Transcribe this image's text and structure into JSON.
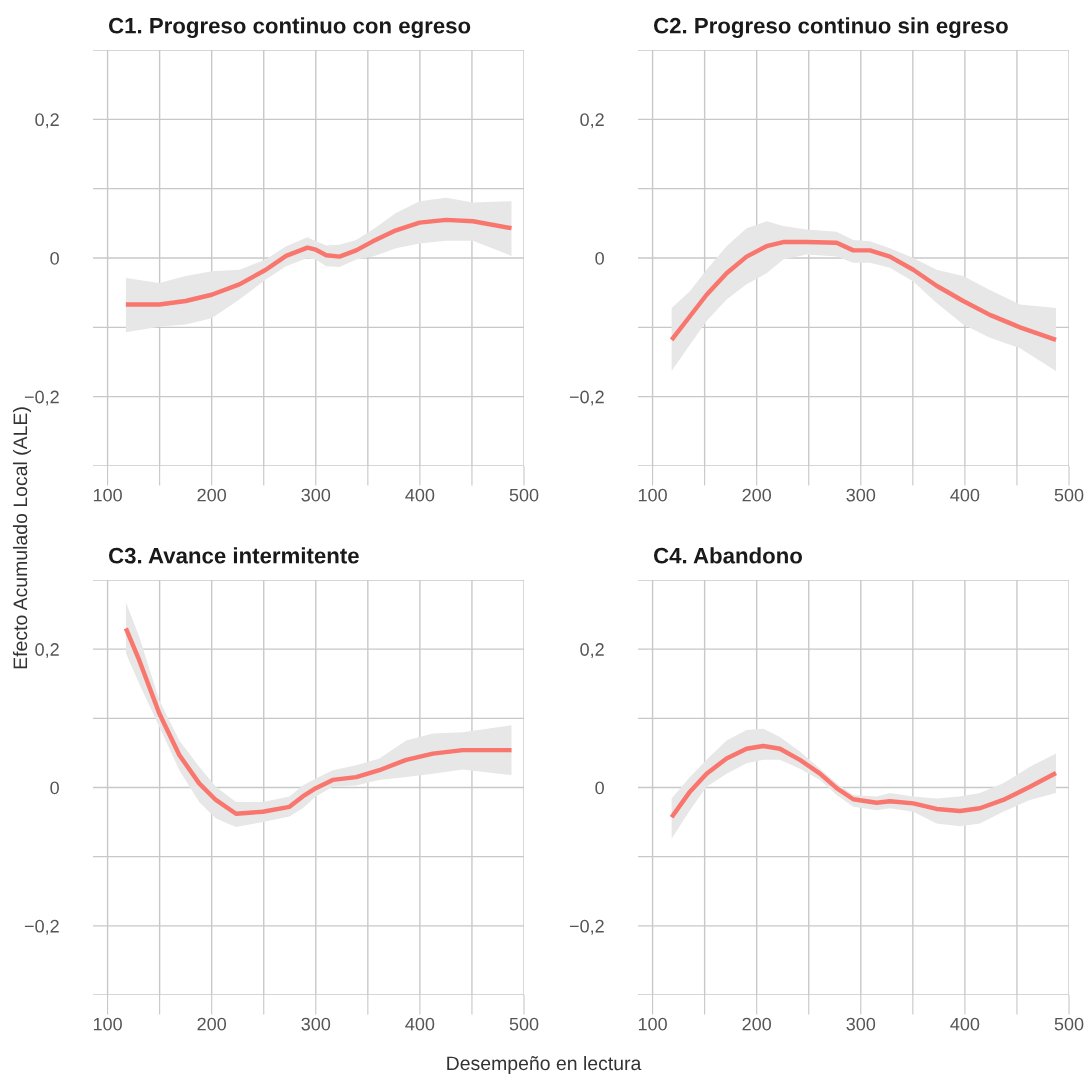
{
  "chart_data": [
    {
      "type": "line",
      "title": "C1. Progreso continuo con egreso",
      "ylabel": "Efecto Acumulado Local (ALE)",
      "xlim": [
        86,
        500
      ],
      "ylim": [
        -0.3,
        0.3
      ],
      "xticks": [
        100,
        {
          "value": 150,
          "label": null
        },
        200,
        {
          "value": 250,
          "label": null
        },
        300,
        {
          "value": 350,
          "label": null
        },
        400,
        {
          "value": 450,
          "label": null
        },
        500
      ],
      "yticks": [
        {
          "value": -0.3,
          "label": null
        },
        {
          "value": -0.2,
          "label": "−0,2"
        },
        {
          "value": -0.1,
          "label": null
        },
        0,
        {
          "value": 0.1,
          "label": null
        },
        {
          "value": 0.2,
          "label": "0,2"
        },
        {
          "value": 0.3,
          "label": null
        }
      ],
      "grid": true,
      "line_style": "solid",
      "marker": "none",
      "series": [
        {
          "color": "#f8766d",
          "x": [
            117.6,
            149.7,
            175,
            200,
            226.6,
            252,
            271.5,
            292,
            300,
            310,
            322.8,
            338.8,
            354.8,
            377,
            399.7,
            425,
            451,
            488
          ],
          "values": [
            -0.067,
            -0.067,
            -0.062,
            -0.053,
            -0.038,
            -0.017,
            0.003,
            0.015,
            0.012,
            0.004,
            0.002,
            0.011,
            0.024,
            0.04,
            0.051,
            0.055,
            0.053,
            0.043
          ],
          "upper": [
            -0.029,
            -0.036,
            -0.026,
            -0.019,
            -0.017,
            -0.002,
            0.017,
            0.03,
            0.024,
            0.018,
            0.019,
            0.026,
            0.041,
            0.065,
            0.082,
            0.087,
            0.08,
            0.082
          ],
          "lower": [
            -0.107,
            -0.099,
            -0.096,
            -0.087,
            -0.06,
            -0.031,
            -0.012,
            0,
            -0.002,
            -0.012,
            -0.013,
            -0.002,
            0.002,
            0.014,
            0.021,
            0.025,
            0.025,
            0.003
          ]
        }
      ]
    },
    {
      "type": "line",
      "title": "C2. Progreso continuo sin egreso",
      "xlim": [
        86,
        500
      ],
      "ylim": [
        -0.3,
        0.3
      ],
      "xticks": [
        100,
        {
          "value": 150,
          "label": null
        },
        200,
        {
          "value": 250,
          "label": null
        },
        300,
        {
          "value": 350,
          "label": null
        },
        400,
        {
          "value": 450,
          "label": null
        },
        500
      ],
      "yticks": [
        {
          "value": -0.3,
          "label": null
        },
        {
          "value": -0.2,
          "label": "−0,2"
        },
        {
          "value": -0.1,
          "label": null
        },
        0,
        {
          "value": 0.1,
          "label": null
        },
        {
          "value": 0.2,
          "label": "0,2"
        },
        {
          "value": 0.3,
          "label": null
        }
      ],
      "grid": true,
      "line_style": "solid",
      "marker": "none",
      "series": [
        {
          "color": "#f8766d",
          "x": [
            118.3,
            135.9,
            151.9,
            171.1,
            190.3,
            209.5,
            225.5,
            248,
            276.8,
            292.8,
            308.8,
            328,
            350.4,
            372.8,
            398.4,
            424,
            452.9,
            487.5
          ],
          "values": [
            -0.118,
            -0.084,
            -0.053,
            -0.022,
            0.002,
            0.017,
            0.023,
            0.023,
            0.022,
            0.011,
            0.011,
            0.002,
            -0.017,
            -0.04,
            -0.062,
            -0.082,
            -0.1,
            -0.118
          ],
          "upper": [
            -0.072,
            -0.048,
            -0.017,
            0.017,
            0.043,
            0.053,
            0.046,
            0.041,
            0.038,
            0.026,
            0.024,
            0.014,
            0,
            -0.017,
            -0.026,
            -0.046,
            -0.067,
            -0.072
          ],
          "lower": [
            -0.163,
            -0.125,
            -0.091,
            -0.06,
            -0.038,
            -0.022,
            -0.002,
            0.005,
            0.002,
            -0.007,
            -0.007,
            -0.014,
            -0.034,
            -0.065,
            -0.096,
            -0.115,
            -0.13,
            -0.163
          ]
        }
      ]
    },
    {
      "type": "line",
      "title": "C3. Avance intermitente",
      "xlabel": "Desempeño en lectura",
      "xlim": [
        86,
        500
      ],
      "ylim": [
        -0.3,
        0.3
      ],
      "xticks": [
        100,
        {
          "value": 150,
          "label": null
        },
        200,
        {
          "value": 250,
          "label": null
        },
        300,
        {
          "value": 350,
          "label": null
        },
        400,
        {
          "value": 450,
          "label": null
        },
        500
      ],
      "yticks": [
        {
          "value": -0.3,
          "label": null
        },
        {
          "value": -0.2,
          "label": "−0,2"
        },
        {
          "value": -0.1,
          "label": null
        },
        0,
        {
          "value": 0.1,
          "label": null
        },
        {
          "value": 0.2,
          "label": "0,2"
        },
        {
          "value": 0.3,
          "label": null
        }
      ],
      "grid": true,
      "line_style": "solid",
      "marker": "none",
      "series": [
        {
          "color": "#f8766d",
          "x": [
            117.6,
            130.4,
            149.7,
            168.9,
            188,
            204,
            223.4,
            249,
            274.7,
            287.5,
            300,
            316.3,
            338.8,
            361,
            386.9,
            412.5,
            441,
            488
          ],
          "values": [
            0.23,
            0.184,
            0.107,
            0.047,
            0.006,
            -0.018,
            -0.038,
            -0.035,
            -0.028,
            -0.013,
            -0.001,
            0.011,
            0.015,
            0.025,
            0.04,
            0.049,
            0.054,
            0.054
          ],
          "upper": [
            0.268,
            0.218,
            0.126,
            0.068,
            0.03,
            0.001,
            -0.021,
            -0.021,
            -0.013,
            0.003,
            0.013,
            0.025,
            0.032,
            0.042,
            0.068,
            0.078,
            0.08,
            0.09
          ],
          "lower": [
            0.194,
            0.15,
            0.088,
            0.025,
            -0.021,
            -0.045,
            -0.057,
            -0.05,
            -0.042,
            -0.03,
            -0.013,
            0.001,
            0.003,
            0.011,
            0.015,
            0.02,
            0.026,
            0.018
          ]
        }
      ]
    },
    {
      "type": "line",
      "title": "C4. Abandono",
      "xlim": [
        86,
        500
      ],
      "ylim": [
        -0.3,
        0.3
      ],
      "xticks": [
        100,
        {
          "value": 150,
          "label": null
        },
        200,
        {
          "value": 250,
          "label": null
        },
        300,
        {
          "value": 350,
          "label": null
        },
        400,
        {
          "value": 450,
          "label": null
        },
        500
      ],
      "yticks": [
        {
          "value": -0.3,
          "label": null
        },
        {
          "value": -0.2,
          "label": "−0,2"
        },
        {
          "value": -0.1,
          "label": null
        },
        0,
        {
          "value": 0.1,
          "label": null
        },
        {
          "value": 0.2,
          "label": "0,2"
        },
        {
          "value": 0.3,
          "label": null
        }
      ],
      "grid": true,
      "line_style": "solid",
      "marker": "none",
      "series": [
        {
          "color": "#f8766d",
          "x": [
            118.3,
            135.9,
            151.9,
            171.1,
            190.3,
            206.3,
            222.3,
            241.5,
            260.8,
            276.8,
            292.8,
            315.2,
            328,
            350.4,
            372.8,
            395.2,
            414.4,
            436.8,
            462.5,
            487.5
          ],
          "values": [
            -0.043,
            -0.006,
            0.02,
            0.042,
            0.056,
            0.06,
            0.056,
            0.04,
            0.02,
            -0.001,
            -0.017,
            -0.022,
            -0.02,
            -0.023,
            -0.031,
            -0.034,
            -0.03,
            -0.018,
            0.001,
            0.021
          ],
          "upper": [
            -0.016,
            0.015,
            0.04,
            0.068,
            0.083,
            0.085,
            0.073,
            0.052,
            0.027,
            0.006,
            -0.011,
            -0.013,
            -0.008,
            -0.013,
            -0.016,
            -0.013,
            -0.008,
            0.006,
            0.03,
            0.049
          ],
          "lower": [
            -0.074,
            -0.033,
            0.001,
            0.02,
            0.035,
            0.04,
            0.04,
            0.027,
            0.011,
            -0.011,
            -0.028,
            -0.033,
            -0.03,
            -0.035,
            -0.052,
            -0.056,
            -0.052,
            -0.035,
            -0.018,
            -0.008
          ]
        }
      ]
    }
  ]
}
